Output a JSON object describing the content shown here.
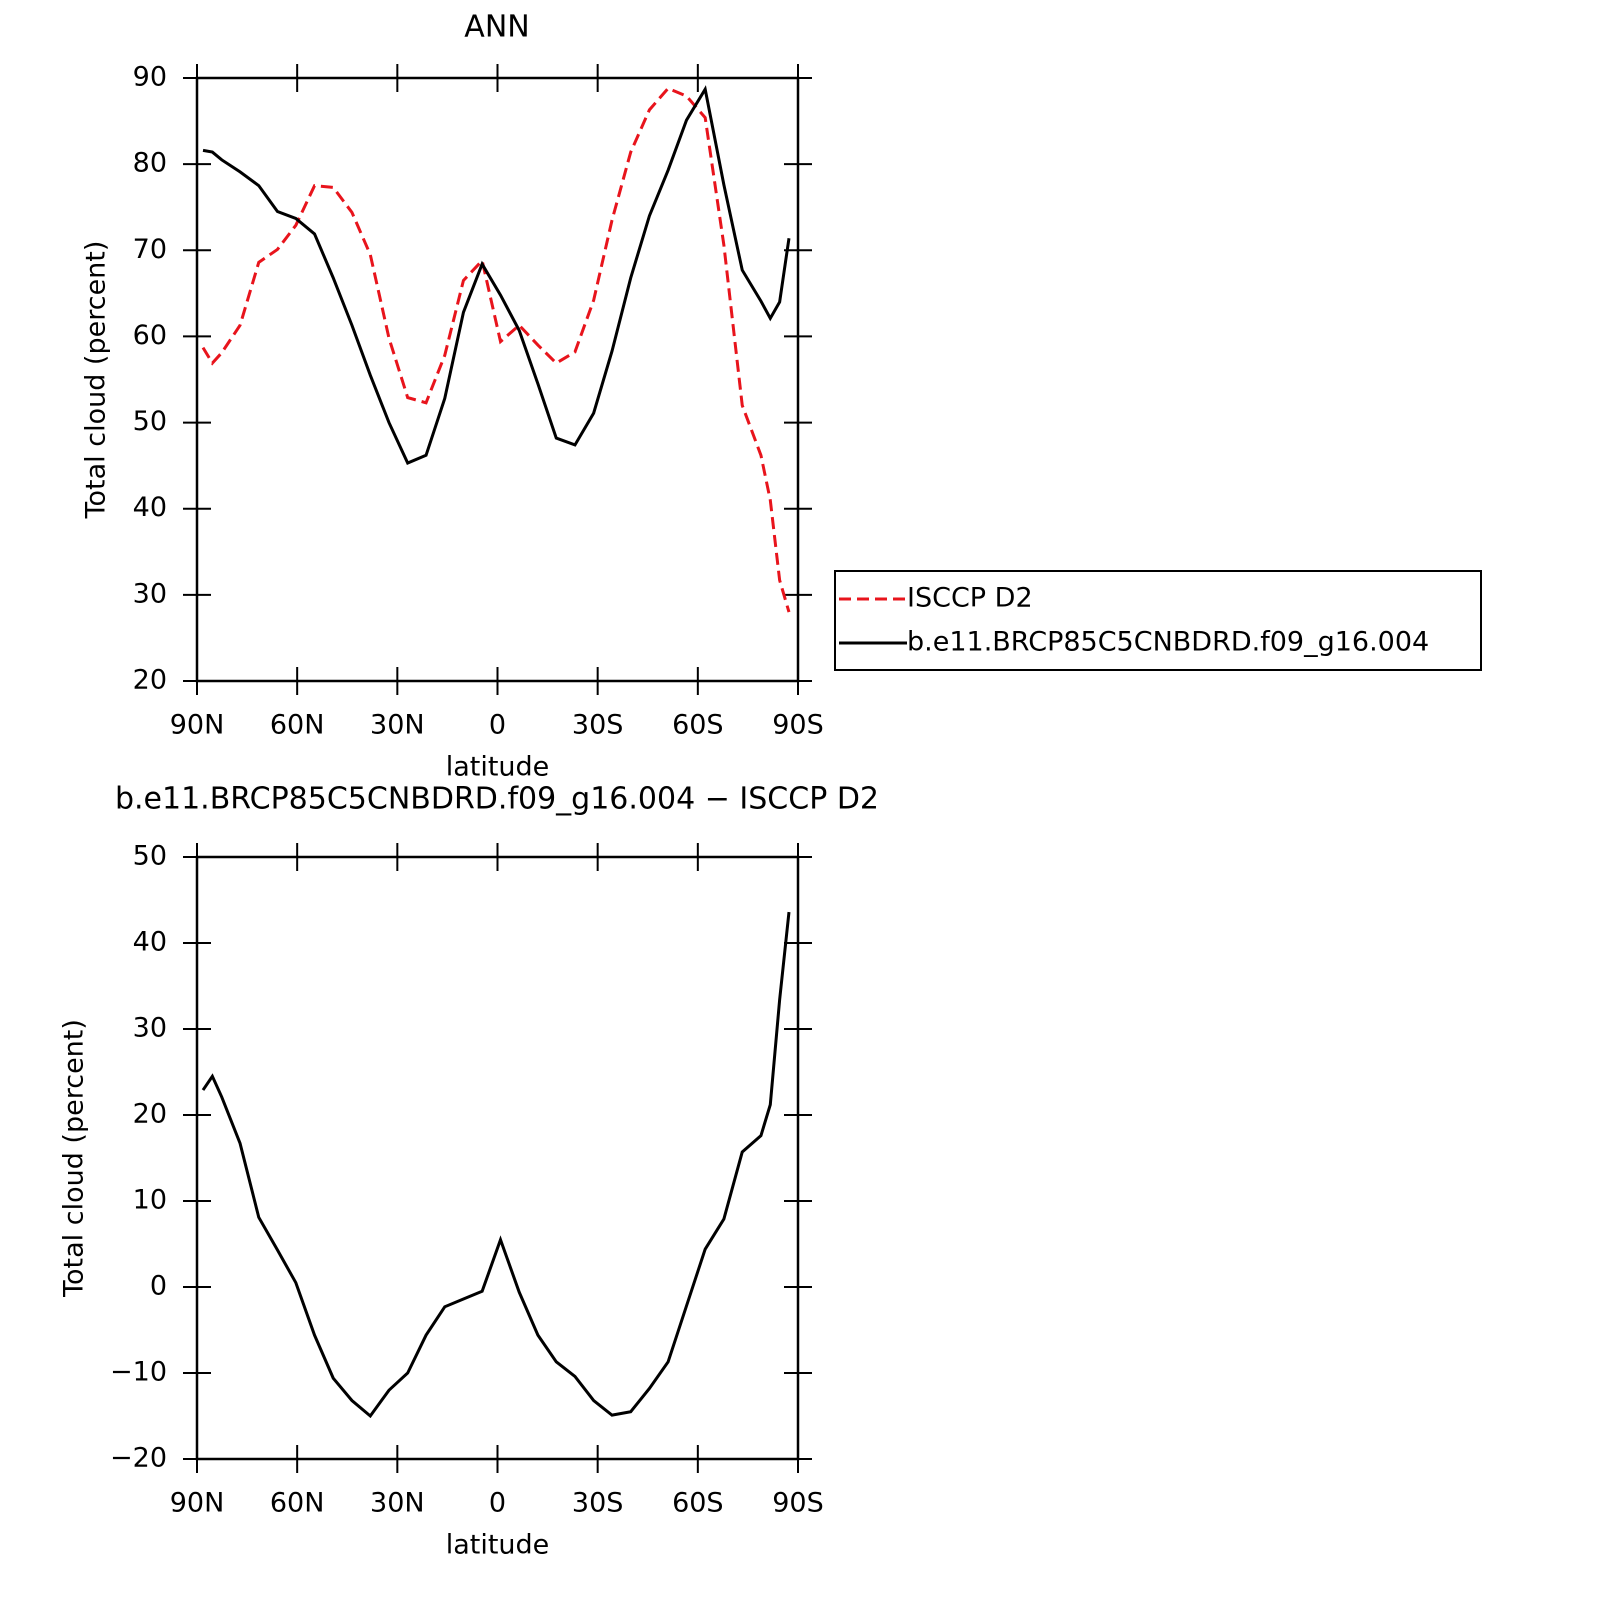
{
  "chart_data": [
    {
      "type": "line",
      "title": "ANN",
      "xlabel": "latitude",
      "ylabel": "Total cloud (percent)",
      "x": [
        88.2,
        85.4,
        82.6,
        77.1,
        71.5,
        65.9,
        60.4,
        54.8,
        49.2,
        43.6,
        38.1,
        32.5,
        26.9,
        21.4,
        15.8,
        10.2,
        4.6,
        -0.9,
        -6.5,
        -12.1,
        -17.6,
        -23.2,
        -28.8,
        -34.3,
        -39.9,
        -45.5,
        -51.1,
        -56.6,
        -62.2,
        -67.8,
        -73.3,
        -78.9,
        -81.7,
        -84.5,
        -87.3
      ],
      "series": [
        {
          "name": "ISCCP D2",
          "color": "#e8141c",
          "style": "dashed",
          "values": [
            58.7,
            56.9,
            58.1,
            61.3,
            68.6,
            70.1,
            72.9,
            77.5,
            77.3,
            74.4,
            69.5,
            59.8,
            52.9,
            52.3,
            57.8,
            66.5,
            68.8,
            59.4,
            61.3,
            59.0,
            56.9,
            58.2,
            64.2,
            73.5,
            81.4,
            86.3,
            88.8,
            87.9,
            85.4,
            70.6,
            52.0,
            46.2,
            41.0,
            31.7,
            28.0
          ]
        },
        {
          "name": "b.e11.BRCP85C5CNBDRD.f09_g16.004",
          "color": "#000000",
          "style": "solid",
          "values": [
            81.6,
            81.4,
            80.5,
            79.1,
            77.5,
            74.5,
            73.7,
            71.9,
            66.8,
            61.3,
            55.5,
            50.0,
            45.3,
            46.2,
            52.8,
            62.8,
            68.4,
            64.8,
            60.7,
            54.5,
            48.2,
            47.4,
            51.1,
            58.3,
            66.8,
            74.0,
            79.3,
            85.1,
            88.7,
            77.6,
            67.7,
            64.1,
            62.1,
            64.0,
            71.4
          ]
        }
      ],
      "xlim": [
        90,
        -90
      ],
      "xticks": [
        {
          "value": 90,
          "label": "90N"
        },
        {
          "value": 60,
          "label": "60N"
        },
        {
          "value": 30,
          "label": "30N"
        },
        0,
        {
          "value": -30,
          "label": "30S"
        },
        {
          "value": -60,
          "label": "60S"
        },
        {
          "value": -90,
          "label": "90S"
        }
      ],
      "ylim": [
        20,
        90
      ],
      "yticks": [
        20,
        30,
        40,
        50,
        60,
        70,
        80,
        90
      ],
      "legend": "right"
    },
    {
      "type": "line",
      "title": "b.e11.BRCP85C5CNBDRD.f09_g16.004 − ISCCP D2",
      "xlabel": "latitude",
      "ylabel": "Total cloud (percent)",
      "x": [
        88.2,
        85.4,
        82.6,
        77.1,
        71.5,
        65.9,
        60.4,
        54.8,
        49.2,
        43.6,
        38.1,
        32.5,
        26.9,
        21.4,
        15.8,
        10.2,
        4.6,
        -0.9,
        -6.5,
        -12.1,
        -17.6,
        -23.2,
        -28.8,
        -34.3,
        -39.9,
        -45.5,
        -51.1,
        -56.6,
        -62.2,
        -67.8,
        -73.3,
        -78.9,
        -81.7,
        -84.5,
        -87.3
      ],
      "values": [
        22.9,
        24.5,
        22.1,
        16.7,
        8.1,
        4.3,
        0.5,
        -5.6,
        -10.6,
        -13.2,
        -15.0,
        -12.0,
        -10.0,
        -5.6,
        -2.3,
        -1.4,
        -0.5,
        5.5,
        -0.6,
        -5.6,
        -8.7,
        -10.4,
        -13.2,
        -14.9,
        -14.5,
        -11.8,
        -8.7,
        -2.2,
        4.4,
        7.9,
        15.7,
        17.6,
        21.2,
        33.4,
        43.6
      ],
      "color": "#000000",
      "xlim": [
        90,
        -90
      ],
      "xticks": [
        {
          "value": 90,
          "label": "90N"
        },
        {
          "value": 60,
          "label": "60N"
        },
        {
          "value": 30,
          "label": "30N"
        },
        0,
        {
          "value": -30,
          "label": "30S"
        },
        {
          "value": -60,
          "label": "60S"
        },
        {
          "value": -90,
          "label": "90S"
        }
      ],
      "ylim": [
        -20,
        50
      ],
      "yticks": [
        {
          "value": -20,
          "label": "−20"
        },
        {
          "value": -10,
          "label": "−10"
        },
        0,
        10,
        20,
        30,
        40,
        50
      ]
    }
  ]
}
